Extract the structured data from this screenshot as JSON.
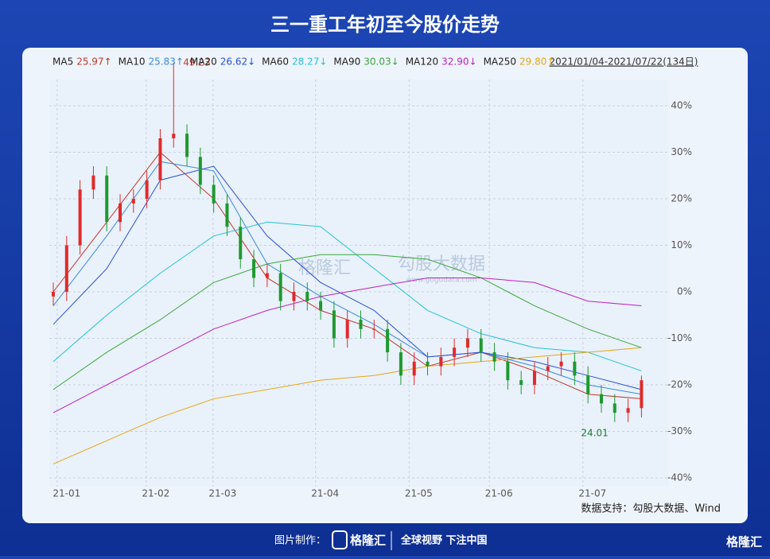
{
  "chart_data": {
    "type": "candlestick",
    "title": "三一重工年初至今股价走势",
    "date_range": "2021/01/04-2021/07/22(134日)",
    "source": "数据支持：勾股大数据、Wind",
    "footer": {
      "made_by": "图片制作：",
      "brand": "格隆汇",
      "slogan": "全球视野 下注中国"
    },
    "watermark": {
      "left": "格隆汇",
      "right": "勾股大数据",
      "url": "www.gogudata.com"
    },
    "annotations": [
      "49.23",
      "24.01"
    ],
    "up_color": "#e02a2a",
    "down_color": "#1e9a2e",
    "xlim": [
      0,
      133
    ],
    "xticks": [
      {
        "value": 3,
        "label": "21-01"
      },
      {
        "value": 23,
        "label": "21-02"
      },
      {
        "value": 38,
        "label": "21-03"
      },
      {
        "value": 61,
        "label": "21-04"
      },
      {
        "value": 82,
        "label": "21-05"
      },
      {
        "value": 100,
        "label": "21-06"
      },
      {
        "value": 121,
        "label": "21-07"
      }
    ],
    "ylim": [
      -40,
      45
    ],
    "yticks": [
      {
        "value": 40,
        "label": "40%"
      },
      {
        "value": 30,
        "label": "30%"
      },
      {
        "value": 20,
        "label": "20%"
      },
      {
        "value": 10,
        "label": "10%"
      },
      {
        "value": 0,
        "label": "0%"
      },
      {
        "value": -10,
        "label": "-10%"
      },
      {
        "value": -20,
        "label": "-20%"
      },
      {
        "value": -30,
        "label": "-30%"
      },
      {
        "value": -40,
        "label": "-40%"
      }
    ],
    "grid": true,
    "candles": {
      "x": [
        0,
        3,
        6,
        9,
        12,
        15,
        18,
        21,
        24,
        27,
        30,
        33,
        36,
        39,
        42,
        45,
        48,
        51,
        54,
        57,
        60,
        63,
        66,
        69,
        72,
        75,
        78,
        81,
        84,
        87,
        90,
        93,
        96,
        99,
        102,
        105,
        108,
        111,
        114,
        117,
        120,
        123,
        126,
        129,
        132
      ],
      "open": [
        -1,
        0,
        10,
        22,
        25,
        15,
        19,
        20,
        24,
        33,
        34,
        29,
        23,
        19,
        14,
        7,
        3,
        4,
        -2,
        0,
        -2,
        -4,
        -10,
        -6,
        -8,
        -8,
        -13,
        -18,
        -15,
        -16,
        -14,
        -12,
        -10,
        -13,
        -15,
        -19,
        -20,
        -17,
        -16,
        -15,
        -18,
        -22,
        -24,
        -26,
        -25
      ],
      "high": [
        2,
        12,
        24,
        27,
        27,
        21,
        22,
        26,
        35,
        49.23,
        36,
        31,
        25,
        21,
        16,
        9,
        6,
        6,
        2,
        2,
        0,
        -2,
        -4,
        -4,
        -6,
        -6,
        -11,
        -13,
        -13,
        -12,
        -10,
        -8,
        -8,
        -11,
        -13,
        -17,
        -15,
        -14,
        -13,
        -13,
        -16,
        -20,
        -22,
        -23,
        -18
      ],
      "low": [
        -3,
        -2,
        8,
        20,
        13,
        13,
        17,
        18,
        22,
        31,
        27,
        21,
        17,
        12,
        5,
        1,
        1,
        -4,
        -4,
        -4,
        -6,
        -12,
        -12,
        -10,
        -10,
        -15,
        -20,
        -20,
        -18,
        -18,
        -16,
        -14,
        -15,
        -17,
        -21,
        -22,
        -22,
        -19,
        -18,
        -20,
        -24,
        -26,
        -28,
        -28,
        -27
      ],
      "close": [
        0,
        10,
        22,
        25,
        15,
        19,
        20,
        24,
        33,
        34,
        29,
        23,
        19,
        14,
        7,
        3,
        4,
        -2,
        0,
        -2,
        -4,
        -10,
        -6,
        -8,
        -8,
        -13,
        -18,
        -15,
        -16,
        -14,
        -12,
        -10,
        -13,
        -15,
        -19,
        -20,
        -17,
        -16,
        -15,
        -18,
        -22,
        -24,
        -26,
        -25,
        -19
      ]
    },
    "x": [
      0,
      12,
      24,
      36,
      48,
      60,
      72,
      84,
      96,
      108,
      120,
      132
    ],
    "series": [
      {
        "name": "MA5",
        "value_label": "25.97↑",
        "color": "#c0392b",
        "values": [
          0,
          15,
          30,
          20,
          3,
          -4,
          -8,
          -16,
          -13,
          -17,
          -22,
          -23
        ]
      },
      {
        "name": "MA10",
        "value_label": "25.83↑",
        "color": "#3b8ad9",
        "values": [
          -3,
          12,
          28,
          26,
          6,
          -1,
          -7,
          -14,
          -13,
          -16,
          -20,
          -22
        ]
      },
      {
        "name": "MA20",
        "value_label": "26.62↓",
        "color": "#2b4fd6",
        "values": [
          -7,
          5,
          24,
          27,
          12,
          2,
          -4,
          -14,
          -13,
          -15,
          -18,
          -21
        ]
      },
      {
        "name": "MA60",
        "value_label": "28.27↓",
        "color": "#22c3d6",
        "values": [
          -15,
          -5,
          4,
          12,
          15,
          14,
          5,
          -4,
          -9,
          -12,
          -13,
          -17
        ]
      },
      {
        "name": "MA90",
        "value_label": "30.03↓",
        "color": "#3aa83a",
        "values": [
          -21,
          -13,
          -6,
          2,
          6,
          8,
          8,
          7,
          3,
          -3,
          -8,
          -12
        ]
      },
      {
        "name": "MA120",
        "value_label": "32.90↓",
        "color": "#c020c0",
        "values": [
          -26,
          -20,
          -14,
          -8,
          -4,
          -1,
          1,
          3,
          3,
          2,
          -2,
          -3
        ]
      },
      {
        "name": "MA250",
        "value_label": "29.80↑",
        "color": "#e6a817",
        "values": [
          -37,
          -32,
          -27,
          -23,
          -21,
          -19,
          -18,
          -16,
          -15,
          -14,
          -13,
          -12
        ]
      }
    ]
  }
}
